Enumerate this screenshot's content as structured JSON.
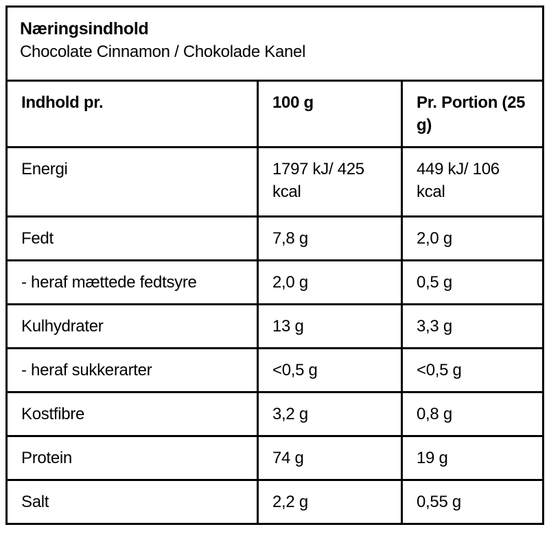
{
  "header": {
    "title": "Næringsindhold",
    "subtitle": "Chocolate Cinnamon / Chokolade Kanel"
  },
  "table": {
    "columns": [
      "Indhold pr.",
      "100 g",
      "Pr. Portion (25 g)"
    ],
    "rows": [
      {
        "label": "Energi",
        "per_100g": "1797 kJ/ 425 kcal",
        "per_portion": "449 kJ/ 106 kcal"
      },
      {
        "label": "Fedt",
        "per_100g": "7,8 g",
        "per_portion": "2,0 g"
      },
      {
        "label": "- heraf mættede fedtsyre",
        "per_100g": "2,0 g",
        "per_portion": "0,5 g"
      },
      {
        "label": "Kulhydrater",
        "per_100g": "13 g",
        "per_portion": "3,3 g"
      },
      {
        "label": "- heraf sukkerarter",
        "per_100g": "<0,5 g",
        "per_portion": "<0,5 g"
      },
      {
        "label": "Kostfibre",
        "per_100g": "3,2 g",
        "per_portion": "0,8 g"
      },
      {
        "label": "Protein",
        "per_100g": "74 g",
        "per_portion": "19 g"
      },
      {
        "label": "Salt",
        "per_100g": "2,2 g",
        "per_portion": "0,55 g"
      }
    ]
  },
  "colors": {
    "border": "#000000",
    "text": "#000000",
    "background": "#ffffff"
  }
}
